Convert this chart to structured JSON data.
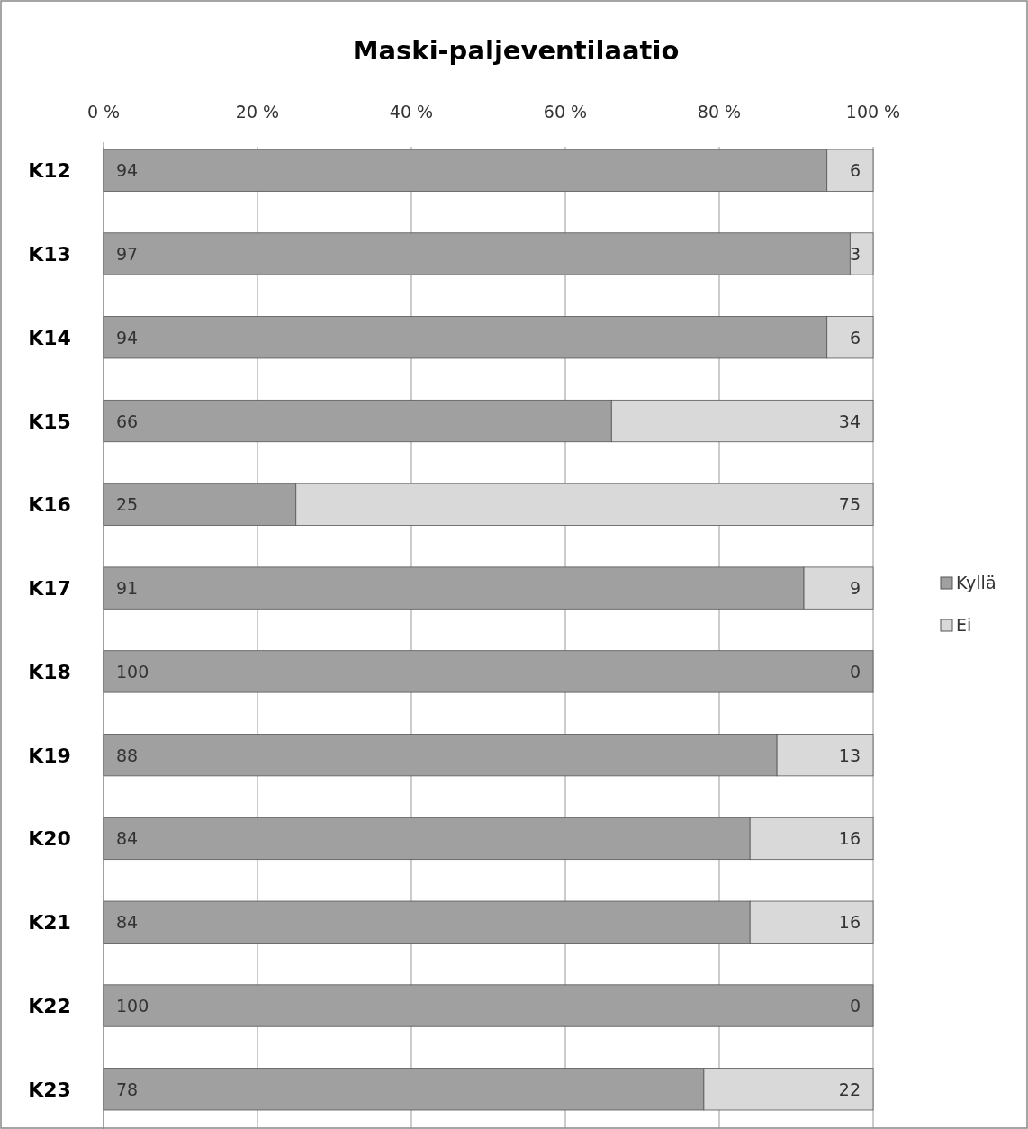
{
  "chart_data": {
    "type": "bar",
    "title": "Maski-paljeventilaatio",
    "orientation": "horizontal",
    "stacked": true,
    "categories": [
      "K12",
      "K13",
      "K14",
      "K15",
      "K16",
      "K17",
      "K18",
      "K19",
      "K20",
      "K21",
      "K22",
      "K23"
    ],
    "series": [
      {
        "name": "Kyllä",
        "color": "#a0a0a0",
        "values": [
          94,
          97,
          94,
          66,
          25,
          91,
          100,
          87.5,
          84,
          84,
          100,
          78
        ],
        "value_labels": [
          "94",
          "97",
          "94",
          "66",
          "25",
          "91",
          "100",
          "88",
          "84",
          "84",
          "100",
          "78"
        ]
      },
      {
        "name": "Ei",
        "color": "#d9d9d9",
        "values": [
          6,
          3,
          6,
          34,
          75,
          9,
          0,
          12.5,
          16,
          16,
          0,
          22
        ],
        "value_labels": [
          "6",
          "3",
          "6",
          "34",
          "75",
          "9",
          "0",
          "13",
          "16",
          "16",
          "0",
          "22"
        ]
      }
    ],
    "xlim": [
      0,
      100
    ],
    "xticks": [
      {
        "value": 0,
        "label": "0 %"
      },
      {
        "value": 20,
        "label": "20 %"
      },
      {
        "value": 40,
        "label": "40 %"
      },
      {
        "value": 60,
        "label": "60 %"
      },
      {
        "value": 80,
        "label": "80 %"
      },
      {
        "value": 100,
        "label": "100 %"
      }
    ],
    "grid": "x",
    "legend": "right"
  }
}
